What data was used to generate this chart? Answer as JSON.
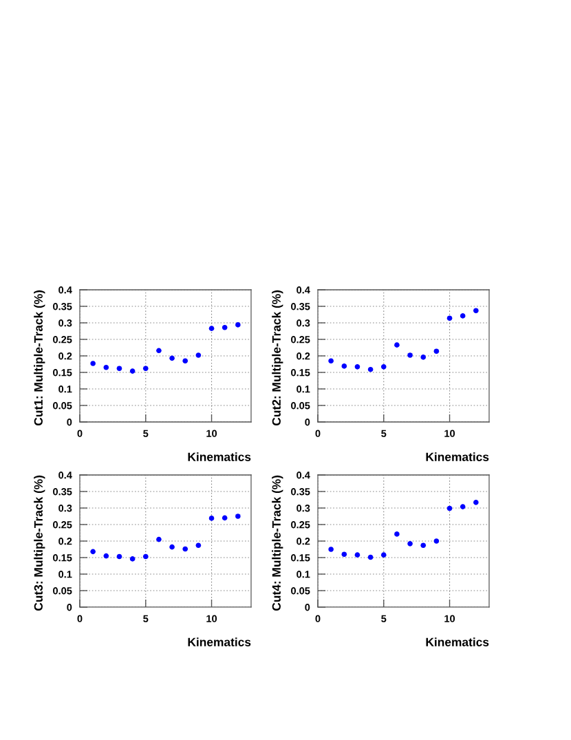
{
  "chart_data": [
    {
      "type": "scatter",
      "xlabel": "Kinematics",
      "ylabel": "Cut1: Multiple-Track (%)",
      "x": [
        1,
        2,
        3,
        4,
        5,
        6,
        7,
        8,
        9,
        10,
        11,
        12
      ],
      "series": [
        {
          "color": "#0000ff",
          "values": [
            0.177,
            0.165,
            0.162,
            0.154,
            0.162,
            0.216,
            0.193,
            0.185,
            0.202,
            0.283,
            0.286,
            0.294
          ]
        }
      ],
      "xlim": [
        0,
        13
      ],
      "ylim": [
        0,
        0.4
      ],
      "xticks": [
        0,
        5,
        10
      ],
      "yticks": [
        0,
        0.05,
        0.1,
        0.15,
        0.2,
        0.25,
        0.3,
        0.35,
        0.4
      ],
      "grid": true,
      "marker": "circle"
    },
    {
      "type": "scatter",
      "xlabel": "Kinematics",
      "ylabel": "Cut2: Multiple-Track (%)",
      "x": [
        1,
        2,
        3,
        4,
        5,
        6,
        7,
        8,
        9,
        10,
        11,
        12
      ],
      "series": [
        {
          "color": "#0000ff",
          "values": [
            0.185,
            0.169,
            0.167,
            0.159,
            0.167,
            0.233,
            0.202,
            0.196,
            0.214,
            0.314,
            0.321,
            0.337
          ]
        }
      ],
      "xlim": [
        0,
        13
      ],
      "ylim": [
        0,
        0.4
      ],
      "xticks": [
        0,
        5,
        10
      ],
      "yticks": [
        0,
        0.05,
        0.1,
        0.15,
        0.2,
        0.25,
        0.3,
        0.35,
        0.4
      ],
      "grid": true,
      "marker": "circle"
    },
    {
      "type": "scatter",
      "xlabel": "Kinematics",
      "ylabel": "Cut3: Multiple-Track (%)",
      "x": [
        1,
        2,
        3,
        4,
        5,
        6,
        7,
        8,
        9,
        10,
        11,
        12
      ],
      "series": [
        {
          "color": "#0000ff",
          "values": [
            0.168,
            0.155,
            0.153,
            0.146,
            0.153,
            0.205,
            0.182,
            0.176,
            0.187,
            0.269,
            0.27,
            0.275
          ]
        }
      ],
      "xlim": [
        0,
        13
      ],
      "ylim": [
        0,
        0.4
      ],
      "xticks": [
        0,
        5,
        10
      ],
      "yticks": [
        0,
        0.05,
        0.1,
        0.15,
        0.2,
        0.25,
        0.3,
        0.35,
        0.4
      ],
      "grid": true,
      "marker": "circle"
    },
    {
      "type": "scatter",
      "xlabel": "Kinematics",
      "ylabel": "Cut4: Multiple-Track (%)",
      "x": [
        1,
        2,
        3,
        4,
        5,
        6,
        7,
        8,
        9,
        10,
        11,
        12
      ],
      "series": [
        {
          "color": "#0000ff",
          "values": [
            0.175,
            0.16,
            0.158,
            0.151,
            0.158,
            0.221,
            0.192,
            0.187,
            0.2,
            0.299,
            0.304,
            0.317
          ]
        }
      ],
      "xlim": [
        0,
        13
      ],
      "ylim": [
        0,
        0.4
      ],
      "xticks": [
        0,
        5,
        10
      ],
      "yticks": [
        0,
        0.05,
        0.1,
        0.15,
        0.2,
        0.25,
        0.3,
        0.35,
        0.4
      ],
      "grid": true,
      "marker": "circle"
    }
  ]
}
